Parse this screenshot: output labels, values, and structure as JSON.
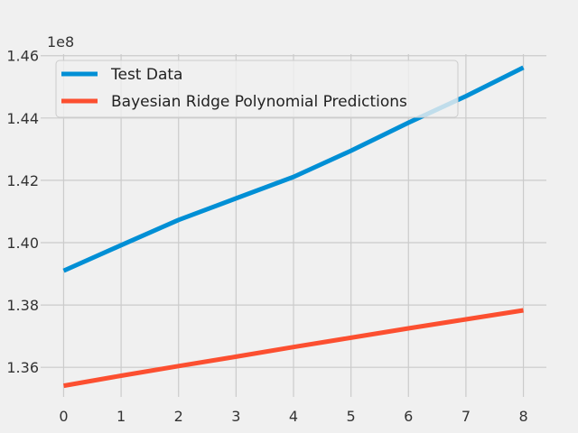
{
  "chart_data": {
    "type": "line",
    "title": "",
    "xlabel": "",
    "ylabel": "",
    "offset_label": "1e8",
    "x": [
      0,
      1,
      2,
      3,
      4,
      5,
      6,
      7,
      8
    ],
    "xlim": [
      -0.4,
      8.4
    ],
    "ylim": [
      1.3505,
      1.4605
    ],
    "x_ticks": [
      "0",
      "1",
      "2",
      "3",
      "4",
      "5",
      "6",
      "7",
      "8"
    ],
    "y_ticks": [
      1.36,
      1.38,
      1.4,
      1.42,
      1.44,
      1.46
    ],
    "y_tick_labels": [
      "1.36",
      "1.38",
      "1.40",
      "1.42",
      "1.44",
      "1.46"
    ],
    "grid": true,
    "legend_position": "upper-left",
    "series": [
      {
        "name": "Test Data",
        "color": "#008fd5",
        "values": [
          1.391,
          1.3992,
          1.4073,
          1.4142,
          1.4211,
          1.4295,
          1.4385,
          1.447,
          1.4562
        ]
      },
      {
        "name": "Bayesian Ridge Polynomial Predictions",
        "color": "#fc4f30",
        "values": [
          1.3541,
          1.3573,
          1.3604,
          1.3634,
          1.3665,
          1.3695,
          1.3725,
          1.3754,
          1.3783
        ]
      }
    ]
  }
}
